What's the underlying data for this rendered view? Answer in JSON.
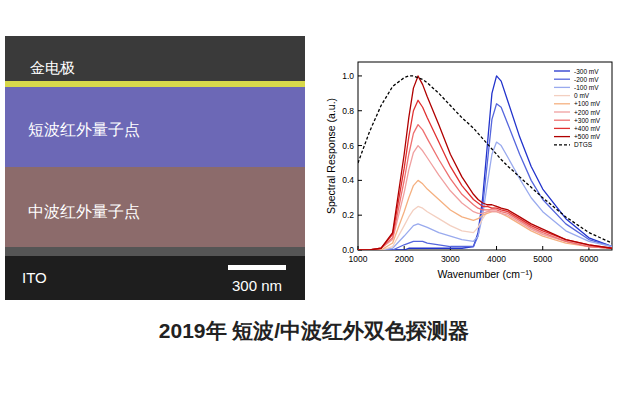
{
  "page": {
    "caption": "2019年 短波/中波红外双色探测器",
    "micrograph": {
      "labels": [
        "金电极",
        "短波红外量子点",
        "中波红外量子点",
        "ITO"
      ],
      "scale_bar": "300 nm"
    }
  },
  "chart_data": {
    "type": "line",
    "x_label": "Wavenumber (cm⁻¹)",
    "y_label": "Spectral Response (a.u.)",
    "xlim": [
      1000,
      6500
    ],
    "xticks": [
      1000,
      2000,
      3000,
      4000,
      5000,
      6000
    ],
    "ylim": [
      0,
      1.08
    ],
    "yticks": [
      {
        "value": 0,
        "label": "0.0"
      },
      {
        "value": 0.2,
        "label": "0.2"
      },
      {
        "value": 0.4,
        "label": "0.4"
      },
      {
        "value": 0.6,
        "label": "0.6"
      },
      {
        "value": 0.8,
        "label": "0.8"
      },
      {
        "value": 1,
        "label": "1.0"
      }
    ],
    "legend": "upper right",
    "grid": false,
    "x": [
      1000,
      1250,
      1500,
      1750,
      2000,
      2100,
      2200,
      2300,
      2400,
      2500,
      2750,
      3000,
      3250,
      3500,
      3600,
      3700,
      3800,
      3900,
      4000,
      4100,
      4250,
      4500,
      4750,
      5000,
      5500,
      6000,
      6500
    ],
    "series": [
      {
        "name": "-300 mV",
        "color": "#2233cc",
        "values": [
          0,
          0,
          0,
          0,
          0,
          0.01,
          0.01,
          0.01,
          0.01,
          0.01,
          0.01,
          0.01,
          0.01,
          0.02,
          0.1,
          0.3,
          0.6,
          0.9,
          1.0,
          0.97,
          0.85,
          0.65,
          0.48,
          0.35,
          0.18,
          0.07,
          0.02
        ]
      },
      {
        "name": "-200 mV",
        "color": "#5566dd",
        "values": [
          0,
          0,
          0,
          0,
          0.03,
          0.04,
          0.05,
          0.05,
          0.05,
          0.04,
          0.03,
          0.02,
          0.02,
          0.02,
          0.08,
          0.25,
          0.5,
          0.75,
          0.84,
          0.82,
          0.72,
          0.55,
          0.4,
          0.29,
          0.15,
          0.06,
          0.02
        ]
      },
      {
        "name": "-100 mV",
        "color": "#99aaee",
        "values": [
          0,
          0,
          0,
          0.01,
          0.08,
          0.11,
          0.14,
          0.15,
          0.14,
          0.13,
          0.1,
          0.08,
          0.06,
          0.05,
          0.08,
          0.2,
          0.38,
          0.55,
          0.62,
          0.6,
          0.53,
          0.41,
          0.3,
          0.22,
          0.11,
          0.05,
          0.02
        ]
      },
      {
        "name": "0 mV",
        "color": "#f3cfc0",
        "values": [
          0,
          0,
          0,
          0.02,
          0.14,
          0.19,
          0.23,
          0.25,
          0.24,
          0.22,
          0.18,
          0.14,
          0.11,
          0.1,
          0.13,
          0.18,
          0.22,
          0.24,
          0.25,
          0.24,
          0.22,
          0.17,
          0.13,
          0.09,
          0.05,
          0.02,
          0.01
        ]
      },
      {
        "name": "+100 mV",
        "color": "#f5b080",
        "values": [
          0,
          0,
          0,
          0.04,
          0.22,
          0.3,
          0.37,
          0.4,
          0.38,
          0.35,
          0.29,
          0.23,
          0.19,
          0.17,
          0.18,
          0.2,
          0.21,
          0.22,
          0.22,
          0.21,
          0.19,
          0.15,
          0.11,
          0.08,
          0.04,
          0.02,
          0.01
        ]
      },
      {
        "name": "+200 mV",
        "color": "#f0a0a0",
        "values": [
          0,
          0,
          0.01,
          0.06,
          0.33,
          0.46,
          0.56,
          0.6,
          0.57,
          0.53,
          0.43,
          0.34,
          0.27,
          0.22,
          0.21,
          0.21,
          0.22,
          0.22,
          0.22,
          0.21,
          0.2,
          0.16,
          0.12,
          0.09,
          0.05,
          0.02,
          0.01
        ]
      },
      {
        "name": "+300 mV",
        "color": "#ee7070",
        "values": [
          0,
          0,
          0.01,
          0.07,
          0.4,
          0.55,
          0.67,
          0.72,
          0.69,
          0.64,
          0.52,
          0.41,
          0.32,
          0.26,
          0.24,
          0.23,
          0.23,
          0.23,
          0.23,
          0.22,
          0.21,
          0.17,
          0.13,
          0.1,
          0.05,
          0.02,
          0.01
        ]
      },
      {
        "name": "+400 mV",
        "color": "#e03030",
        "values": [
          0,
          0,
          0.01,
          0.09,
          0.47,
          0.65,
          0.8,
          0.86,
          0.82,
          0.76,
          0.62,
          0.48,
          0.37,
          0.29,
          0.27,
          0.25,
          0.25,
          0.24,
          0.24,
          0.23,
          0.22,
          0.18,
          0.14,
          0.11,
          0.06,
          0.03,
          0.01
        ]
      },
      {
        "name": "+500 mV",
        "color": "#b00000",
        "values": [
          0,
          0,
          0.01,
          0.1,
          0.55,
          0.76,
          0.93,
          1.0,
          0.95,
          0.88,
          0.72,
          0.55,
          0.42,
          0.32,
          0.29,
          0.27,
          0.26,
          0.26,
          0.25,
          0.24,
          0.23,
          0.19,
          0.15,
          0.12,
          0.06,
          0.03,
          0.01
        ]
      },
      {
        "name": "DTGS",
        "color": "#000000",
        "line_style": "dashed",
        "values": [
          0.5,
          0.68,
          0.83,
          0.94,
          0.99,
          1.0,
          1.0,
          0.99,
          0.98,
          0.96,
          0.9,
          0.83,
          0.76,
          0.7,
          0.67,
          0.64,
          0.61,
          0.58,
          0.55,
          0.52,
          0.48,
          0.42,
          0.36,
          0.3,
          0.19,
          0.1,
          0.04
        ]
      }
    ]
  }
}
